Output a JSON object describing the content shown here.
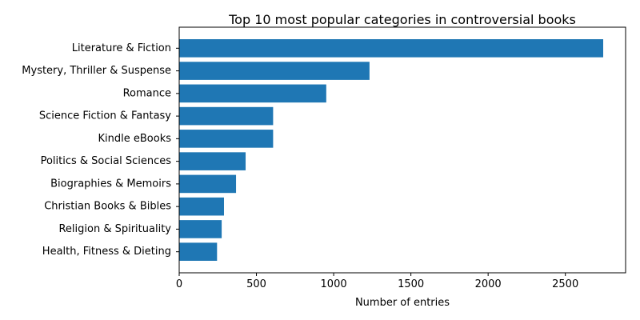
{
  "chart_data": {
    "type": "bar",
    "orientation": "horizontal",
    "title": "Top 10 most popular categories in controversial books",
    "xlabel": "Number of entries",
    "ylabel": "",
    "xlim": [
      0,
      2890
    ],
    "xticks": [
      0,
      500,
      1000,
      1500,
      2000,
      2500
    ],
    "grid": false,
    "legend": "none",
    "bar_color": "#1f77b4",
    "categories": [
      "Literature & Fiction",
      "Mystery, Thriller & Suspense",
      "Romance",
      "Science Fiction & Fantasy",
      "Kindle eBooks",
      "Politics & Social Sciences",
      "Biographies & Memoirs",
      "Christian Books & Bibles",
      "Religion & Spirituality",
      "Health, Fitness & Dieting"
    ],
    "values": [
      2745,
      1232,
      952,
      608,
      608,
      430,
      368,
      290,
      275,
      245
    ]
  }
}
